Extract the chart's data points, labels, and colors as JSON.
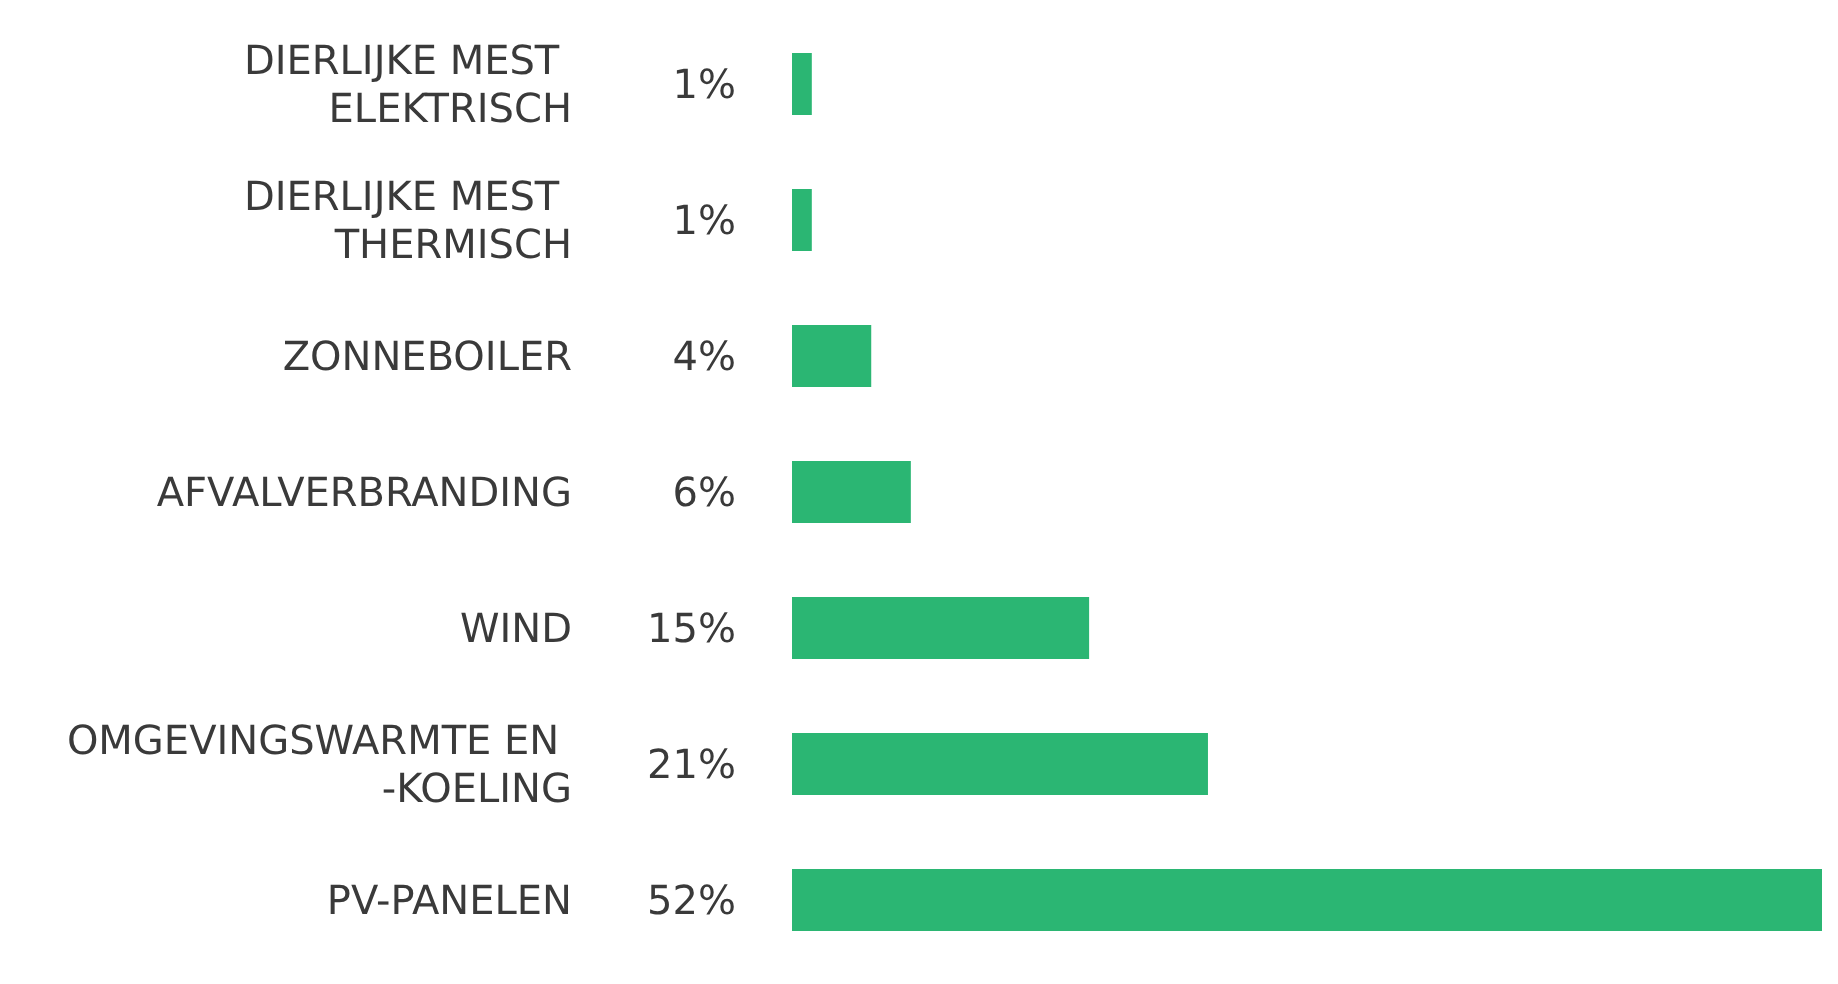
{
  "chart_data": {
    "type": "bar",
    "orientation": "horizontal",
    "categories": [
      "DIERLIJKE MEST ELEKTRISCH",
      "DIERLIJKE MEST THERMISCH",
      "ZONNEBOILER",
      "AFVALVERBRANDING",
      "WIND",
      "OMGEVINGSWARMTE EN -KOELING",
      "PV-PANELEN"
    ],
    "values": [
      1,
      1,
      4,
      6,
      15,
      21,
      52
    ],
    "value_labels": [
      "1%",
      "1%",
      "4%",
      "6%",
      "15%",
      "21%",
      "52%"
    ],
    "color": "#2bb673"
  }
}
